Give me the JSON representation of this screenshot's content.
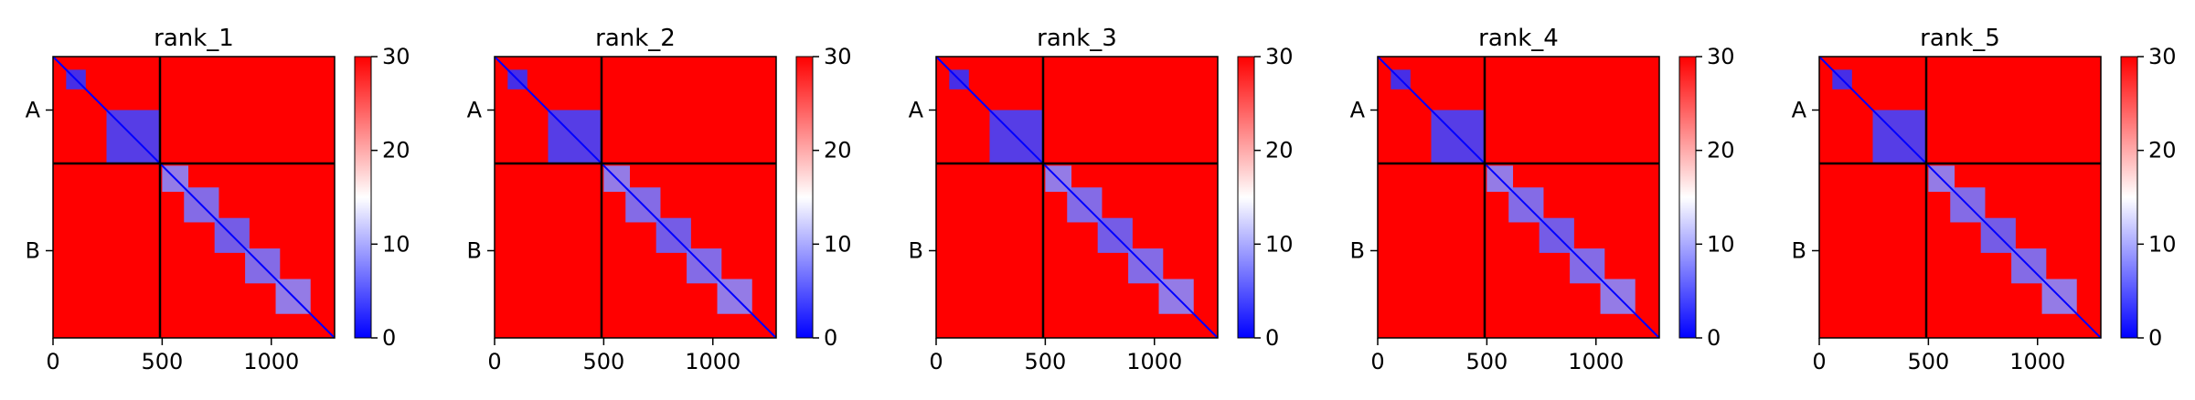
{
  "chart_data": {
    "type": "heatmap",
    "colormap": {
      "name": "bwr",
      "low": "#0000ff",
      "mid": "#ffffff",
      "high": "#ff0000",
      "vmin": 0,
      "vmax": 30
    },
    "chains": [
      {
        "label": "A",
        "start": 0,
        "end": 490
      },
      {
        "label": "B",
        "start": 490,
        "end": 1290
      }
    ],
    "domains": [
      {
        "start": 60,
        "end": 150,
        "value": 3
      },
      {
        "start": 245,
        "end": 490,
        "value": 4
      },
      {
        "start": 500,
        "end": 620,
        "value": 8
      },
      {
        "start": 600,
        "end": 760,
        "value": 7
      },
      {
        "start": 740,
        "end": 900,
        "value": 6
      },
      {
        "start": 880,
        "end": 1040,
        "value": 7
      },
      {
        "start": 1020,
        "end": 1180,
        "value": 8
      }
    ],
    "background_value": 30,
    "xlim": [
      0,
      1290
    ],
    "xticks": [
      0,
      500,
      1000
    ],
    "colorbar_ticks": [
      0,
      10,
      20,
      30
    ],
    "panels": [
      {
        "title": "rank_1"
      },
      {
        "title": "rank_2"
      },
      {
        "title": "rank_3"
      },
      {
        "title": "rank_4"
      },
      {
        "title": "rank_5"
      }
    ]
  }
}
